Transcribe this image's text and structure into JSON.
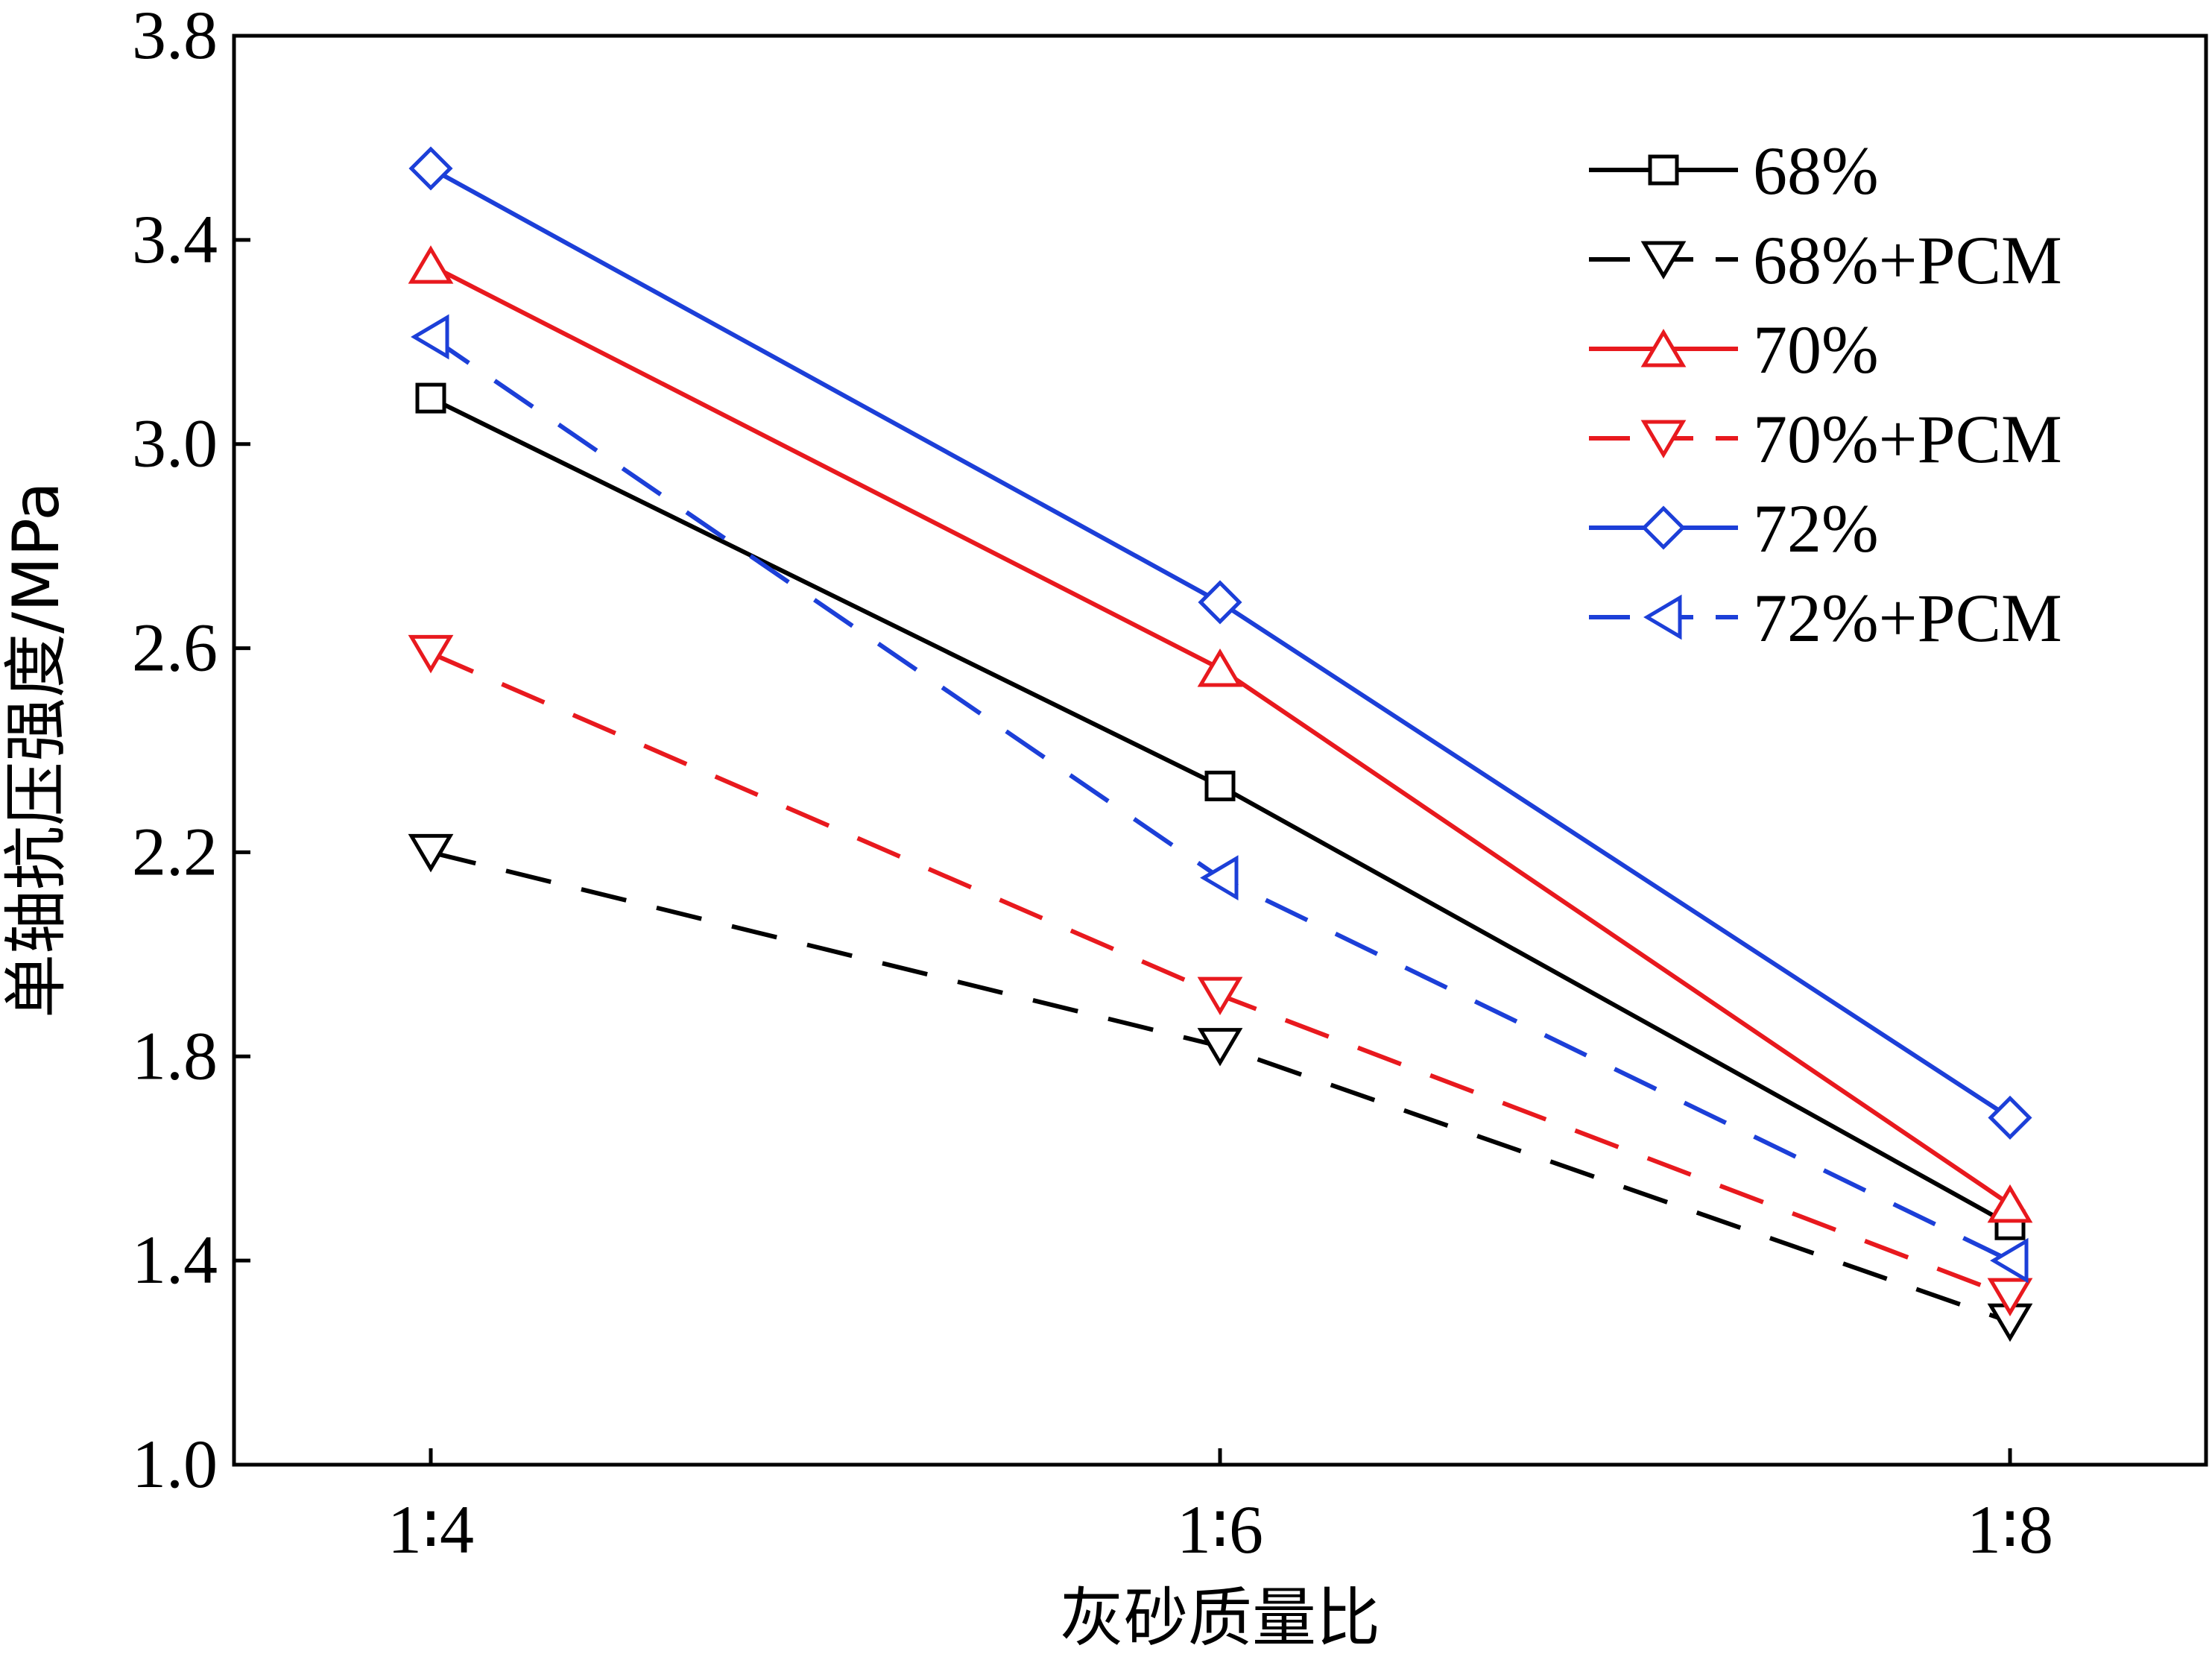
{
  "chart_data": {
    "type": "line",
    "xlabel": "灰砂质量比",
    "ylabel": "单轴抗压强度/MPa",
    "categories": [
      "1∶4",
      "1∶6",
      "1∶8"
    ],
    "ylim": [
      1.0,
      3.8
    ],
    "yticks": [
      "1.0",
      "1.4",
      "1.8",
      "2.2",
      "2.6",
      "3.0",
      "3.4",
      "3.8"
    ],
    "grid": false,
    "legend_position": "top-right",
    "series": [
      {
        "name": "68%",
        "values": [
          3.09,
          2.33,
          1.47
        ],
        "color": "#000000",
        "dash": "solid",
        "marker": "square"
      },
      {
        "name": "68%+PCM",
        "values": [
          2.2,
          1.82,
          1.28
        ],
        "color": "#000000",
        "dash": "dashed",
        "marker": "triangle-down"
      },
      {
        "name": "70%",
        "values": [
          3.35,
          2.56,
          1.51
        ],
        "color": "#e8191e",
        "dash": "solid",
        "marker": "triangle-up"
      },
      {
        "name": "70%+PCM",
        "values": [
          2.59,
          1.92,
          1.33
        ],
        "color": "#e8191e",
        "dash": "dashed",
        "marker": "triangle-down"
      },
      {
        "name": "72%",
        "values": [
          3.54,
          2.69,
          1.68
        ],
        "color": "#1c3fd8",
        "dash": "solid",
        "marker": "diamond"
      },
      {
        "name": "72%+PCM",
        "values": [
          3.21,
          2.15,
          1.4
        ],
        "color": "#1c3fd8",
        "dash": "dashed",
        "marker": "triangle-left"
      }
    ]
  }
}
